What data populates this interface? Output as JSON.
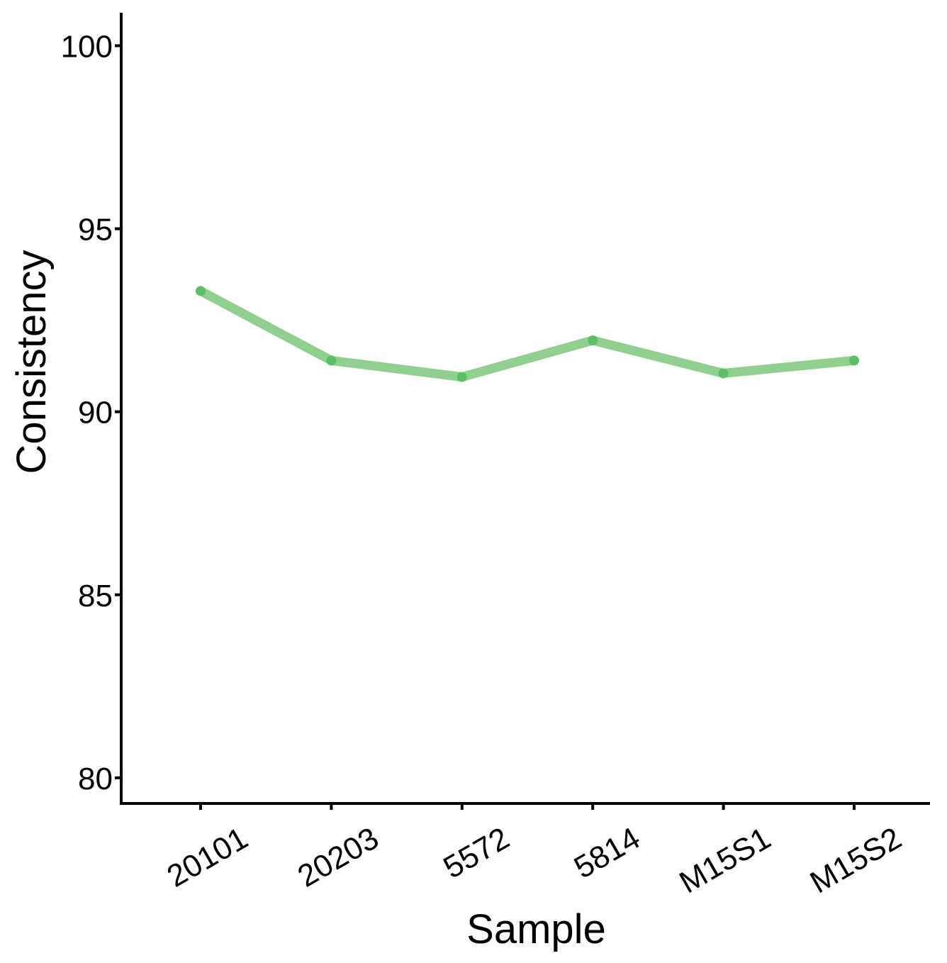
{
  "chart_data": {
    "type": "line",
    "title": "",
    "xlabel": "Sample",
    "ylabel": "Consistency",
    "categories": [
      "20101",
      "20203",
      "5572",
      "5814",
      "M15S1",
      "M15S2"
    ],
    "series": [
      {
        "values": [
          93.3,
          91.4,
          90.95,
          91.95,
          91.05,
          91.4
        ]
      }
    ],
    "ylim": [
      79.3,
      100.9
    ],
    "yticks": [
      80,
      85,
      90,
      95,
      100
    ],
    "grid": false,
    "legend": "none",
    "colors": {
      "line": "#8fd08f",
      "point": "#5bbf66",
      "axis": "#000000"
    }
  }
}
